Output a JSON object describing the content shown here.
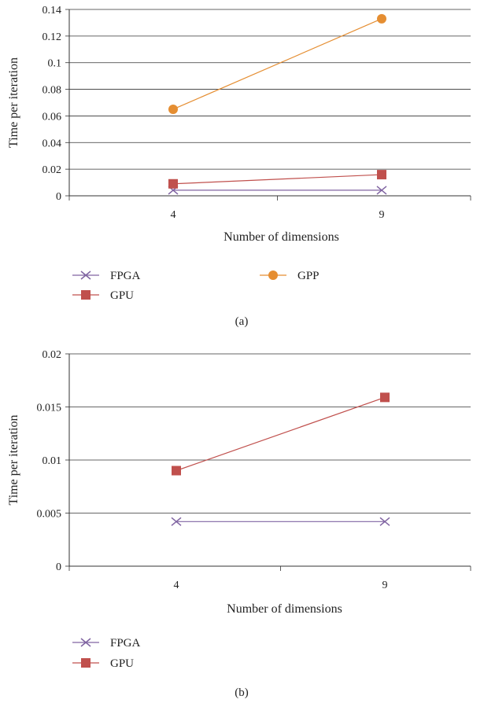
{
  "chart_data": [
    {
      "type": "line",
      "panel_label": "(a)",
      "x": [
        "4",
        "9"
      ],
      "xlabel": "Number of dimensions",
      "ylabel": "Time per iteration",
      "ylim": [
        0,
        0.14
      ],
      "yticks": [
        "0",
        "0.02",
        "0.04",
        "0.06",
        "0.08",
        "0.1",
        "0.12",
        "0.14"
      ],
      "grid": true,
      "legend_position": "bottom",
      "series": [
        {
          "name": "FPGA",
          "values": [
            0.0042,
            0.0042
          ],
          "color": "#8064a2",
          "marker": "x"
        },
        {
          "name": "GPU",
          "values": [
            0.009,
            0.0159
          ],
          "color": "#c0504d",
          "marker": "square"
        },
        {
          "name": "GPP",
          "values": [
            0.065,
            0.133
          ],
          "color": "#e58e32",
          "marker": "circle"
        }
      ]
    },
    {
      "type": "line",
      "panel_label": "(b)",
      "x": [
        "4",
        "9"
      ],
      "xlabel": "Number of dimensions",
      "ylabel": "Time per iteration",
      "ylim": [
        0,
        0.02
      ],
      "yticks": [
        "0",
        "0.005",
        "0.01",
        "0.015",
        "0.02"
      ],
      "grid": true,
      "legend_position": "bottom",
      "series": [
        {
          "name": "FPGA",
          "values": [
            0.0042,
            0.0042
          ],
          "color": "#8064a2",
          "marker": "x"
        },
        {
          "name": "GPU",
          "values": [
            0.009,
            0.0159
          ],
          "color": "#c0504d",
          "marker": "square"
        }
      ]
    }
  ]
}
